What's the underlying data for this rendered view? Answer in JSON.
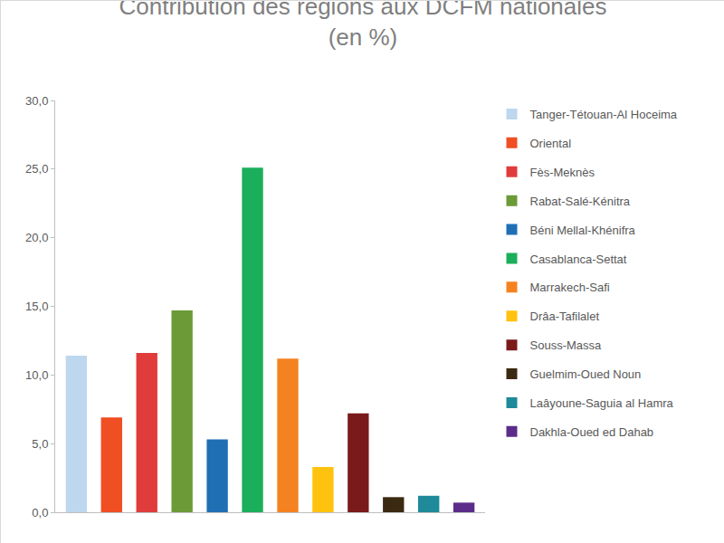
{
  "chart_data": {
    "type": "bar",
    "title": "Contribution des régions aux DCFM nationales\n(en %)",
    "categories": [
      "Tanger-Tétouan-Al Hoceima",
      "Oriental",
      "Fès-Meknès",
      "Rabat-Salé-Kénitra",
      "Béni Mellal-Khénifra",
      "Casablanca-Settat",
      "Marrakech-Safi",
      "Drâa-Tafilalet",
      "Souss-Massa",
      "Guelmim-Oued Noun",
      "Laâyoune-Saguia al Hamra",
      "Dakhla-Oued ed Dahab"
    ],
    "values": [
      11.4,
      6.9,
      11.6,
      14.7,
      5.3,
      25.1,
      11.2,
      3.3,
      7.2,
      1.1,
      1.2,
      0.7
    ],
    "colors": [
      "#bdd7ee",
      "#f04e23",
      "#e03c3c",
      "#6b9a37",
      "#1f6fb5",
      "#1bae5b",
      "#f58220",
      "#ffc20e",
      "#7b1a1a",
      "#3a2a12",
      "#1e8a9a",
      "#5b2c8a"
    ],
    "ylim": [
      0,
      30
    ],
    "yticks": [
      {
        "value": 0,
        "label": "0,0"
      },
      {
        "value": 5,
        "label": "5,0"
      },
      {
        "value": 10,
        "label": "10,0"
      },
      {
        "value": 15,
        "label": "15,0"
      },
      {
        "value": 20,
        "label": "20,0"
      },
      {
        "value": 25,
        "label": "25,0"
      },
      {
        "value": 30,
        "label": "30,0"
      }
    ],
    "grid": false,
    "legend": "right",
    "tick_labels": "y"
  }
}
